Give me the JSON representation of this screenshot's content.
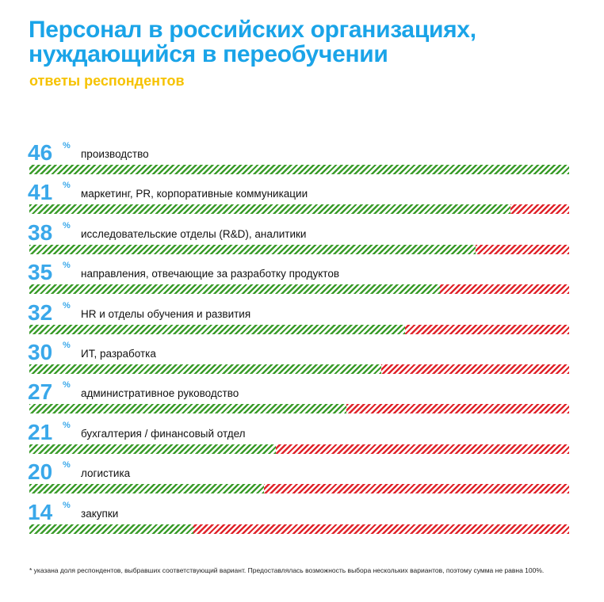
{
  "title": {
    "line1": "Персонал в российских организациях,",
    "line2": "нуждающийся в переобучении"
  },
  "subtitle": "ответы респондентов",
  "percent_sign": "%",
  "colors": {
    "title": "#1aa4e8",
    "subtitle": "#f6c200",
    "value": "#3aa8ea",
    "needs_retraining": "#3a9c2a",
    "remainder": "#e0242b"
  },
  "chart_data": {
    "type": "bar",
    "orientation": "horizontal",
    "categories": [
      "производство",
      "маркетинг, PR, корпоративные коммуникации",
      "исследовательские отделы (R&D), аналитики",
      "направления, отвечающие за разработку продуктов",
      "HR и отделы обучения и развития",
      "ИТ, разработка",
      "административное руководство",
      "бухгалтерия / финансовый отдел",
      "логистика",
      "закупки"
    ],
    "values": [
      46,
      41,
      38,
      35,
      32,
      30,
      27,
      21,
      20,
      14
    ],
    "ylim": [
      0,
      46
    ],
    "legend": "none",
    "grid": false
  },
  "footnote": "* указана доля респондентов, выбравших соответствующий вариант. Предоставлялась возможность выбора нескольких вариантов, поэтому сумма не равна 100%."
}
